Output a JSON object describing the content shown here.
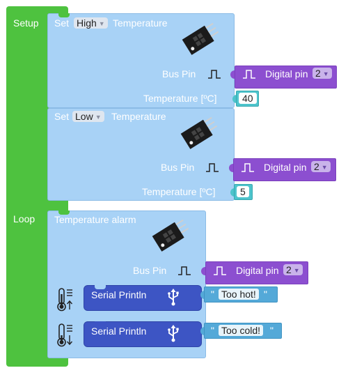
{
  "setup": {
    "label": "Setup"
  },
  "loop": {
    "label": "Loop"
  },
  "set_high": {
    "prefix": "Set",
    "level": "High",
    "suffix": "Temperature",
    "bus_pin_label": "Bus Pin",
    "digital_pin_label": "Digital pin",
    "digital_pin_value": "2",
    "temp_label": "Temperature [ºC]",
    "temp_value": "40"
  },
  "set_low": {
    "prefix": "Set",
    "level": "Low",
    "suffix": "Temperature",
    "bus_pin_label": "Bus Pin",
    "digital_pin_label": "Digital pin",
    "digital_pin_value": "2",
    "temp_label": "Temperature [ºC]",
    "temp_value": "5"
  },
  "alarm": {
    "title": "Temperature alarm",
    "bus_pin_label": "Bus Pin",
    "digital_pin_label": "Digital pin",
    "digital_pin_value": "2",
    "hot": {
      "label": "Serial Println",
      "quote_open": "\"",
      "text": "Too hot!",
      "quote_close": "\""
    },
    "cold": {
      "label": "Serial Println",
      "quote_open": "\"",
      "text": "Too cold!",
      "quote_close": "\""
    }
  },
  "colors": {
    "green": "#4ec23f",
    "light_blue": "#a8d2f6",
    "purple": "#8c4fd0",
    "teal": "#4dc4cc",
    "navy": "#3d55c4",
    "text_block": "#54a9d8"
  },
  "icons": [
    "sensor-module-icon",
    "pulse-icon",
    "usb-icon",
    "thermometer-up-icon",
    "thermometer-down-icon"
  ]
}
